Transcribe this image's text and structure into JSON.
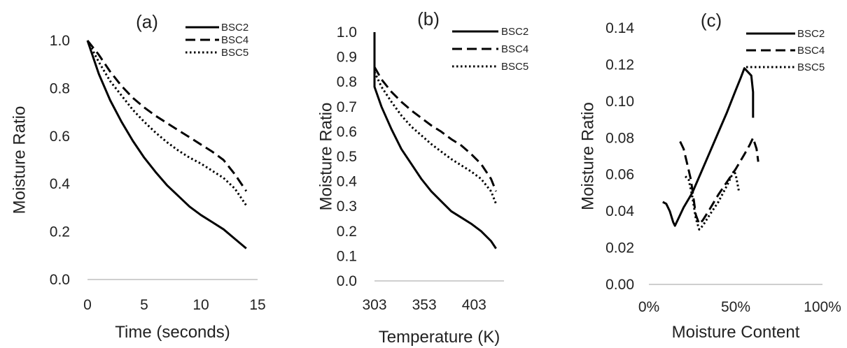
{
  "chart_data": [
    {
      "type": "line",
      "panel_label": "(a)",
      "xlabel": "Time (seconds)",
      "ylabel": "Moisture Ratio",
      "xlim": [
        0,
        15
      ],
      "ylim": [
        0,
        1
      ],
      "x_ticks": [
        0,
        5,
        10,
        15
      ],
      "x_tick_labels": [
        "0",
        "5",
        "10",
        "15"
      ],
      "y_ticks": [
        0,
        0.2,
        0.4,
        0.6,
        0.8,
        1.0
      ],
      "y_tick_labels": [
        "0.0",
        "0.2",
        "0.4",
        "0.6",
        "0.8",
        "1.0"
      ],
      "grid": false,
      "legend": "top-right",
      "series": [
        {
          "name": "BSC2",
          "style": "solid",
          "x": [
            0,
            1,
            2,
            3,
            4,
            5,
            6,
            7,
            8,
            9,
            10,
            11,
            12,
            13,
            14
          ],
          "y": [
            1.0,
            0.86,
            0.75,
            0.66,
            0.58,
            0.51,
            0.45,
            0.395,
            0.35,
            0.305,
            0.27,
            0.24,
            0.21,
            0.17,
            0.13
          ]
        },
        {
          "name": "BSC4",
          "style": "dashed",
          "x": [
            0,
            1,
            2,
            3,
            4,
            5,
            6,
            7,
            8,
            9,
            10,
            11,
            12,
            13,
            14
          ],
          "y": [
            1.0,
            0.94,
            0.87,
            0.81,
            0.76,
            0.72,
            0.685,
            0.655,
            0.625,
            0.595,
            0.565,
            0.535,
            0.5,
            0.44,
            0.37
          ]
        },
        {
          "name": "BSC5",
          "style": "dotted",
          "x": [
            0,
            1,
            2,
            3,
            4,
            5,
            6,
            7,
            8,
            9,
            10,
            11,
            12,
            13,
            14
          ],
          "y": [
            1.0,
            0.91,
            0.83,
            0.77,
            0.71,
            0.66,
            0.615,
            0.575,
            0.54,
            0.51,
            0.485,
            0.455,
            0.425,
            0.38,
            0.31
          ]
        }
      ]
    },
    {
      "type": "line",
      "panel_label": "(b)",
      "xlabel": "Temperature (K)",
      "ylabel": "Moisture Ratio",
      "xlim": [
        303,
        433
      ],
      "ylim": [
        0,
        1
      ],
      "x_ticks": [
        303,
        353,
        403
      ],
      "x_tick_labels": [
        "303",
        "353",
        "403"
      ],
      "y_ticks": [
        0,
        0.1,
        0.2,
        0.3,
        0.4,
        0.5,
        0.6,
        0.7,
        0.8,
        0.9,
        1.0
      ],
      "y_tick_labels": [
        "0.0",
        "0.1",
        "0.2",
        "0.3",
        "0.4",
        "0.5",
        "0.6",
        "0.7",
        "0.8",
        "0.9",
        "1.0"
      ],
      "grid": false,
      "legend": "top-right",
      "series": [
        {
          "name": "BSC2",
          "style": "solid",
          "x": [
            303,
            303,
            310,
            320,
            330,
            340,
            350,
            360,
            370,
            380,
            390,
            400,
            410,
            420,
            425
          ],
          "y": [
            1.0,
            0.78,
            0.7,
            0.61,
            0.53,
            0.47,
            0.41,
            0.36,
            0.32,
            0.28,
            0.255,
            0.23,
            0.2,
            0.16,
            0.13
          ]
        },
        {
          "name": "BSC4",
          "style": "dashed",
          "x": [
            303,
            310,
            320,
            330,
            340,
            350,
            360,
            370,
            380,
            390,
            400,
            410,
            420,
            425
          ],
          "y": [
            0.86,
            0.81,
            0.76,
            0.72,
            0.685,
            0.655,
            0.625,
            0.6,
            0.57,
            0.545,
            0.51,
            0.47,
            0.41,
            0.36
          ]
        },
        {
          "name": "BSC5",
          "style": "dotted",
          "x": [
            303,
            310,
            320,
            330,
            340,
            350,
            360,
            370,
            380,
            390,
            400,
            410,
            420,
            425
          ],
          "y": [
            0.84,
            0.78,
            0.72,
            0.665,
            0.62,
            0.585,
            0.55,
            0.52,
            0.49,
            0.465,
            0.44,
            0.41,
            0.36,
            0.31
          ]
        }
      ]
    },
    {
      "type": "line",
      "panel_label": "(c)",
      "xlabel": "Moisture Content",
      "ylabel": "Moisture Ratio",
      "xlim": [
        0,
        100
      ],
      "ylim": [
        0,
        0.14
      ],
      "x_ticks": [
        0,
        50,
        100
      ],
      "x_tick_labels": [
        "0%",
        "50%",
        "100%"
      ],
      "y_ticks": [
        0,
        0.02,
        0.04,
        0.06,
        0.08,
        0.1,
        0.12,
        0.14
      ],
      "y_tick_labels": [
        "0.00",
        "0.02",
        "0.04",
        "0.06",
        "0.08",
        "0.10",
        "0.12",
        "0.14"
      ],
      "grid": false,
      "legend": "top-right",
      "series": [
        {
          "name": "BSC2",
          "style": "solid",
          "x": [
            8,
            10,
            12,
            14,
            15,
            17,
            20,
            25,
            30,
            35,
            40,
            45,
            50,
            53,
            55,
            57,
            59,
            60,
            60
          ],
          "y": [
            0.045,
            0.044,
            0.04,
            0.034,
            0.032,
            0.036,
            0.042,
            0.05,
            0.061,
            0.072,
            0.083,
            0.094,
            0.106,
            0.113,
            0.118,
            0.116,
            0.114,
            0.105,
            0.091
          ]
        },
        {
          "name": "BSC4",
          "style": "dashed",
          "x": [
            18,
            20,
            22,
            24,
            25,
            27,
            29,
            31,
            35,
            40,
            45,
            50,
            55,
            58,
            60,
            62,
            63
          ],
          "y": [
            0.078,
            0.074,
            0.066,
            0.058,
            0.052,
            0.038,
            0.033,
            0.035,
            0.041,
            0.049,
            0.056,
            0.063,
            0.071,
            0.076,
            0.08,
            0.074,
            0.067
          ]
        },
        {
          "name": "BSC5",
          "style": "dotted",
          "x": [
            21,
            23,
            25,
            27,
            29,
            31,
            35,
            40,
            45,
            49,
            50,
            51,
            52
          ],
          "y": [
            0.059,
            0.057,
            0.048,
            0.036,
            0.03,
            0.032,
            0.038,
            0.045,
            0.054,
            0.062,
            0.06,
            0.055,
            0.05
          ]
        }
      ]
    }
  ]
}
